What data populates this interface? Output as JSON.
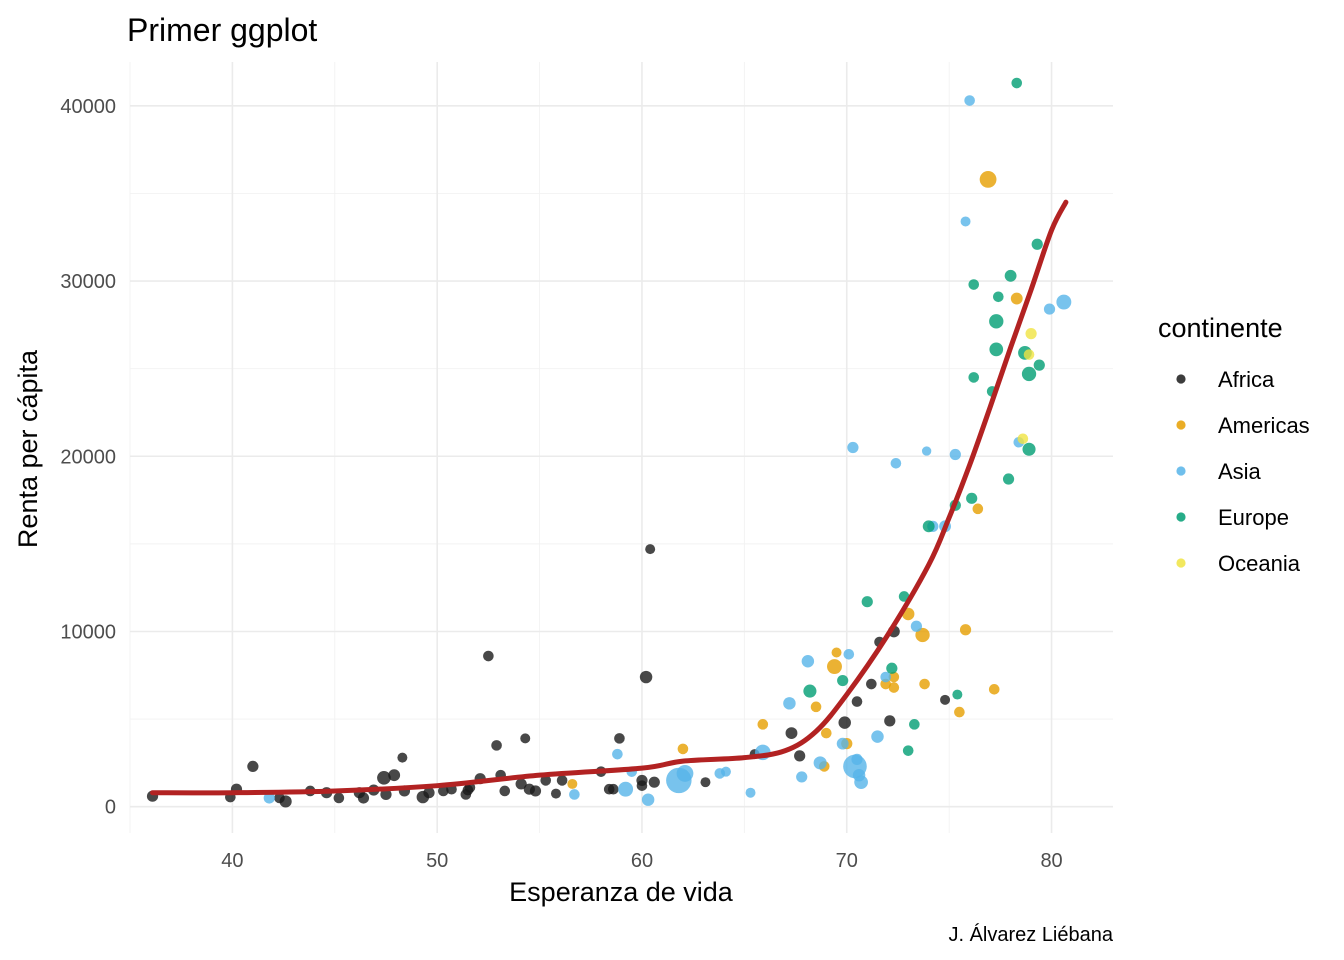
{
  "chart_data": {
    "type": "scatter",
    "title": "Primer ggplot",
    "xlabel": "Esperanza de vida",
    "ylabel": "Renta per cápita",
    "caption": "J. Álvarez Liébana",
    "legend_title": "continente",
    "legend_position": "right",
    "grid": true,
    "xlim": [
      35,
      83
    ],
    "ylim": [
      -1500,
      42500
    ],
    "x_ticks": [
      40,
      50,
      60,
      70,
      80
    ],
    "x_tick_labels": [
      "40",
      "50",
      "60",
      "70",
      "80"
    ],
    "y_ticks": [
      0,
      10000,
      20000,
      30000,
      40000
    ],
    "y_tick_labels": [
      "0",
      "10000",
      "20000",
      "30000",
      "40000"
    ],
    "colors": {
      "Africa": "#1a1a1a",
      "Americas": "#e69f00",
      "Asia": "#56b4e9",
      "Europe": "#009e73",
      "Oceania": "#f0e442",
      "smooth": "#b22222"
    },
    "series": [
      {
        "name": "Africa",
        "points": [
          [
            36.1,
            600,
            2.2
          ],
          [
            40.2,
            1000,
            2.2
          ],
          [
            41.0,
            2300,
            2.2
          ],
          [
            39.9,
            550,
            2.0
          ],
          [
            42.3,
            500,
            2.0
          ],
          [
            42.6,
            300,
            2.5
          ],
          [
            43.8,
            900,
            2.0
          ],
          [
            44.6,
            800,
            2.2
          ],
          [
            45.2,
            500,
            2.0
          ],
          [
            46.2,
            800,
            2.2
          ],
          [
            46.4,
            500,
            2.2
          ],
          [
            46.9,
            950,
            2.2
          ],
          [
            47.4,
            1650,
            3.0
          ],
          [
            47.5,
            700,
            2.2
          ],
          [
            47.9,
            1800,
            2.4
          ],
          [
            48.3,
            2800,
            1.8
          ],
          [
            48.4,
            900,
            2.2
          ],
          [
            49.3,
            550,
            2.6
          ],
          [
            49.6,
            800,
            2.2
          ],
          [
            50.3,
            900,
            2.0
          ],
          [
            50.7,
            1000,
            2.0
          ],
          [
            51.4,
            700,
            2.0
          ],
          [
            51.5,
            950,
            2.0
          ],
          [
            51.6,
            1100,
            2.0
          ],
          [
            52.1,
            1600,
            2.2
          ],
          [
            52.5,
            8600,
            2.0
          ],
          [
            52.9,
            3500,
            2.0
          ],
          [
            53.1,
            1800,
            2.0
          ],
          [
            53.3,
            900,
            2.0
          ],
          [
            54.1,
            1300,
            2.2
          ],
          [
            54.3,
            3900,
            1.8
          ],
          [
            54.5,
            1000,
            2.2
          ],
          [
            54.8,
            900,
            2.2
          ],
          [
            55.3,
            1500,
            2.0
          ],
          [
            55.8,
            750,
            1.8
          ],
          [
            56.1,
            1500,
            2.0
          ],
          [
            58.0,
            2000,
            2.0
          ],
          [
            58.4,
            1000,
            2.0
          ],
          [
            58.6,
            1000,
            2.0
          ],
          [
            58.9,
            3900,
            2.0
          ],
          [
            60.0,
            1500,
            2.2
          ],
          [
            60.2,
            7400,
            2.6
          ],
          [
            60.4,
            14700,
            1.8
          ],
          [
            60.0,
            1200,
            2.0
          ],
          [
            60.6,
            1400,
            2.2
          ],
          [
            63.1,
            1400,
            1.8
          ],
          [
            65.5,
            3000,
            1.8
          ],
          [
            67.3,
            4200,
            2.4
          ],
          [
            67.7,
            2900,
            2.2
          ],
          [
            69.9,
            4800,
            2.6
          ],
          [
            70.5,
            6000,
            2.0
          ],
          [
            71.2,
            7000,
            2.0
          ],
          [
            71.6,
            9400,
            2.0
          ],
          [
            72.1,
            4900,
            2.2
          ],
          [
            72.3,
            10000,
            2.4
          ],
          [
            74.8,
            6100,
            1.8
          ]
        ]
      },
      {
        "name": "Americas",
        "points": [
          [
            56.6,
            1300,
            1.8
          ],
          [
            62.0,
            3300,
            2.0
          ],
          [
            65.9,
            4700,
            2.0
          ],
          [
            68.5,
            5700,
            2.0
          ],
          [
            68.9,
            2300,
            2.0
          ],
          [
            69.0,
            4200,
            2.0
          ],
          [
            69.4,
            8000,
            3.4
          ],
          [
            69.5,
            8800,
            1.8
          ],
          [
            70.0,
            3600,
            2.2
          ],
          [
            71.9,
            7000,
            2.0
          ],
          [
            72.3,
            7400,
            2.0
          ],
          [
            72.3,
            6800,
            2.0
          ],
          [
            73.0,
            11000,
            2.6
          ],
          [
            73.7,
            9800,
            3.2
          ],
          [
            73.8,
            7000,
            2.0
          ],
          [
            75.5,
            5400,
            2.0
          ],
          [
            75.8,
            10100,
            2.2
          ],
          [
            76.4,
            17000,
            2.0
          ],
          [
            76.9,
            35800,
            4.0
          ],
          [
            77.2,
            6700,
            2.0
          ],
          [
            78.3,
            29000,
            2.4
          ]
        ]
      },
      {
        "name": "Asia",
        "points": [
          [
            41.8,
            500,
            2.2
          ],
          [
            56.7,
            700,
            2.0
          ],
          [
            58.8,
            3000,
            2.0
          ],
          [
            59.2,
            1000,
            3.4
          ],
          [
            59.5,
            2000,
            2.0
          ],
          [
            60.3,
            400,
            2.6
          ],
          [
            61.8,
            1500,
            6.8
          ],
          [
            62.1,
            1900,
            4.0
          ],
          [
            63.8,
            1900,
            2.0
          ],
          [
            64.1,
            2000,
            1.8
          ],
          [
            65.3,
            800,
            1.8
          ],
          [
            65.9,
            3100,
            3.6
          ],
          [
            67.2,
            5900,
            2.6
          ],
          [
            67.8,
            1700,
            2.2
          ],
          [
            68.1,
            8300,
            2.6
          ],
          [
            68.7,
            2500,
            2.8
          ],
          [
            69.8,
            3600,
            2.4
          ],
          [
            70.1,
            8700,
            2.0
          ],
          [
            70.3,
            20500,
            2.2
          ],
          [
            70.4,
            2300,
            6.2
          ],
          [
            70.5,
            2700,
            2.2
          ],
          [
            70.7,
            1400,
            3.0
          ],
          [
            70.6,
            1800,
            2.6
          ],
          [
            71.5,
            4000,
            2.6
          ],
          [
            71.9,
            7400,
            2.0
          ],
          [
            72.4,
            19600,
            2.0
          ],
          [
            73.4,
            10300,
            2.2
          ],
          [
            73.9,
            20300,
            1.6
          ],
          [
            74.2,
            16000,
            2.2
          ],
          [
            74.8,
            16000,
            2.4
          ],
          [
            75.3,
            20100,
            2.2
          ],
          [
            75.8,
            33400,
            1.8
          ],
          [
            76.0,
            40300,
            2.0
          ],
          [
            78.4,
            20800,
            2.0
          ],
          [
            79.9,
            28400,
            2.2
          ],
          [
            80.6,
            28800,
            3.4
          ]
        ]
      },
      {
        "name": "Europe",
        "points": [
          [
            68.2,
            6600,
            2.8
          ],
          [
            69.8,
            7200,
            2.2
          ],
          [
            71.0,
            11700,
            2.2
          ],
          [
            72.2,
            7900,
            2.2
          ],
          [
            72.8,
            12000,
            2.0
          ],
          [
            73.0,
            3200,
            2.0
          ],
          [
            73.3,
            4700,
            2.0
          ],
          [
            74.0,
            16000,
            2.4
          ],
          [
            75.3,
            17200,
            2.2
          ],
          [
            75.4,
            6400,
            1.8
          ],
          [
            76.1,
            17600,
            2.2
          ],
          [
            76.2,
            29800,
            2.0
          ],
          [
            76.2,
            24500,
            2.0
          ],
          [
            77.1,
            23700,
            2.0
          ],
          [
            77.3,
            27700,
            3.2
          ],
          [
            77.3,
            26100,
            3.0
          ],
          [
            77.4,
            29100,
            2.0
          ],
          [
            77.9,
            18700,
            2.2
          ],
          [
            78.0,
            30300,
            2.4
          ],
          [
            78.3,
            41300,
            2.0
          ],
          [
            78.7,
            25900,
            3.0
          ],
          [
            78.9,
            24700,
            3.2
          ],
          [
            78.9,
            20400,
            2.8
          ],
          [
            79.3,
            32100,
            2.2
          ],
          [
            79.4,
            25200,
            2.2
          ]
        ]
      },
      {
        "name": "Oceania",
        "points": [
          [
            79.0,
            27000,
            2.2
          ],
          [
            78.6,
            21000,
            2.0
          ],
          [
            78.9,
            25800,
            2.0
          ]
        ]
      }
    ],
    "smooth": {
      "name": "smooth",
      "x": [
        36.1,
        40,
        45,
        50,
        55,
        60,
        62,
        65,
        67,
        68.5,
        70,
        72,
        74,
        75,
        76,
        77,
        78,
        79,
        80,
        80.7
      ],
      "y": [
        800,
        800,
        900,
        1200,
        1800,
        2200,
        2600,
        2800,
        3200,
        4300,
        6400,
        9800,
        13800,
        16500,
        19500,
        22800,
        26200,
        29500,
        32900,
        34500
      ]
    }
  }
}
